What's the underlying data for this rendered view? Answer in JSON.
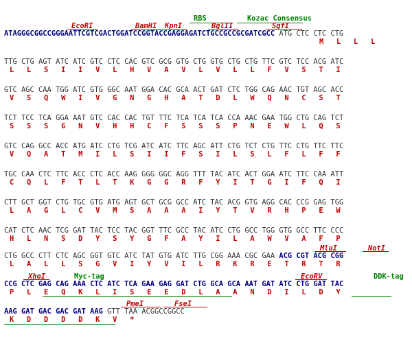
{
  "colors": {
    "navy": "#000080",
    "red": "#c00000",
    "green": "#008000",
    "grey": "#333333"
  },
  "header_labels": {
    "rbs": "RBS",
    "kozac": "Kozac Consensus",
    "ecori": "EcoRI",
    "bamhi": "BamHI",
    "kpni": "KpnI",
    "bglii": "BglII",
    "sgfi": "SgfI"
  },
  "header": {
    "seq_navy": "ATAGGGCGGCCGGGAATTCGTCGACTGGATCCGGTACCGAGGAGATCTGCCGCCGCGATCGCC",
    "codons": "ATG CTC CTC CTG",
    "aa": "M   L   L   L"
  },
  "lines": [
    {
      "codons": "TTG CTG AGT ATC ATC GTC CTC CAC GTC GCG GTG CTG GTG CTG CTG TTC GTC TCC ACG ATC",
      "aa": "L   L   S   I   I   V   L   H   V   A   V   L   V   L   L   F   V   S   T   I"
    },
    {
      "codons": "GTC AGC CAA TGG ATC GTG GGC AAT GGA CAC GCA ACT GAT CTC TGG CAG AAC TGT AGC ACC",
      "aa": "V   S   Q   W   I   V   G   N   G   H   A   T   D   L   W   Q   N   C   S   T"
    },
    {
      "codons": "TCT TCC TCA GGA AAT GTC CAC CAC TGT TTC TCA TCA TCA CCA AAC GAA TGG CTG CAG TCT",
      "aa": "S   S   S   G   N   V   H   H   C   F   S   S   S   P   N   E   W   L   Q   S"
    },
    {
      "codons": "GTC CAG GCC ACC ATG ATC CTG TCG ATC ATC TTC AGC ATT CTG TCT CTG TTC CTG TTC TTC",
      "aa": "V   Q   A   T   M   I   L   S   I   I   F   S   I   L   S   L   F   L   F   F"
    },
    {
      "codons": "TGC CAA CTC TTC ACC CTC ACC AAG GGG GGC AGG TTT TAC ATC ACT GGA ATC TTC CAA ATT",
      "aa": "C   Q   L   F   T   L   T   K   G   G   R   F   Y   I   T   G   I   F   Q   I"
    },
    {
      "codons": "CTT GCT GGT CTG TGC GTG ATG AGT GCT GCG GCC ATC TAC ACG GTG AGG CAC CCG GAG TGG",
      "aa": "L   A   G   L   C   V   M   S   A   A   A   I   Y   T   V   R   H   P   E   W"
    },
    {
      "codons": "CAT CTC AAC TCG GAT TAC TCC TAC GGT TTC GCC TAC ATC CTG GCC TGG GTG GCC TTC CCC",
      "aa": "H   L   N   S   D   Y   S   Y   G   F   A   Y   I   L   A   W   V   A   F   P"
    },
    {
      "codons": "CTG GCC CTT CTC AGC GGT GTC ATC TAT GTG ATC TTG CGG AAA CGC GAA",
      "codons_navy": "ACG CGT ACG CGG",
      "aa": "L   A   L   L   S   G   V   I   Y   V   I   L   R   K   R   E   T   R   T   R"
    },
    {
      "codons_navy": "CCG CTC GAG CAG AAA CTC ATC TCA GAA GAG GAT CTG GCA GCA AAT GAT ATC CTG GAT TAC",
      "aa": "P   L   E   Q   K   L   I   S   E   E   D   L   A   A   N   D   I   L   D   Y"
    },
    {
      "codons_navy": "AAG GAT GAC GAC GAT AAG",
      "codons": "GTT TAA ACGGCCGGCC",
      "aa": "K   D   D   D   D   K   V   *"
    }
  ],
  "site_labels": {
    "mlui": "MluI",
    "noti": "NotI",
    "xhoi": "XhoI",
    "myc": "Myc-tag",
    "ecorv": "EcoRV",
    "ddk": "DDK-tag",
    "pmei": "PmeI",
    "fsei": "FseI"
  }
}
